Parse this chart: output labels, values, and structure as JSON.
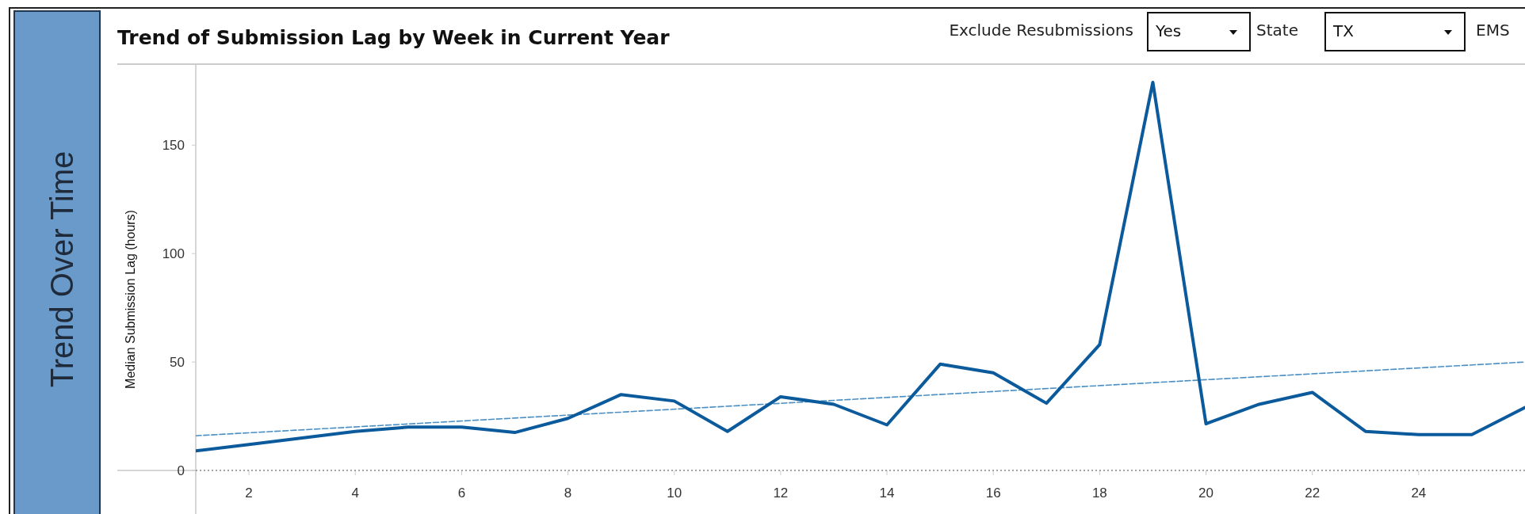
{
  "chart_data": {
    "type": "line",
    "title": "Trend of Submission Lag by Week in Current Year",
    "ylabel": "Median Submission Lag (hours)",
    "annotations": [
      "Trend Over Time",
      "Exclude Resubmissions",
      "Yes",
      "State",
      "TX",
      "EMS"
    ],
    "xlim": [
      1,
      26
    ],
    "xticks": [
      2,
      4,
      6,
      8,
      10,
      12,
      14,
      16,
      18,
      20,
      22,
      24
    ],
    "ylim": [
      0,
      187
    ],
    "yticks": [
      0,
      50,
      100,
      150
    ],
    "grid": false,
    "marker": "none",
    "ref_lines": [
      {
        "axis": "y",
        "value": 0,
        "color": "#888888",
        "line_style": "dotted"
      }
    ],
    "series": [
      {
        "color": "#0b5a9c",
        "line_style": "solid",
        "x": [
          1,
          2,
          3,
          4,
          5,
          6,
          7,
          8,
          9,
          10,
          11,
          12,
          13,
          14,
          15,
          16,
          17,
          18,
          19,
          20,
          21,
          22,
          23,
          24,
          25,
          26
        ],
        "values": [
          9,
          12,
          15,
          18,
          20,
          20,
          17.5,
          24,
          35,
          32,
          18,
          34,
          30.5,
          21,
          49,
          45,
          31,
          58,
          179,
          21.5,
          30.5,
          36,
          18,
          16.5,
          16.5,
          29
        ]
      },
      {
        "color": "#4a8fc4",
        "line_style": "dashed",
        "x": [
          1,
          26
        ],
        "values": [
          16,
          50
        ]
      }
    ]
  }
}
